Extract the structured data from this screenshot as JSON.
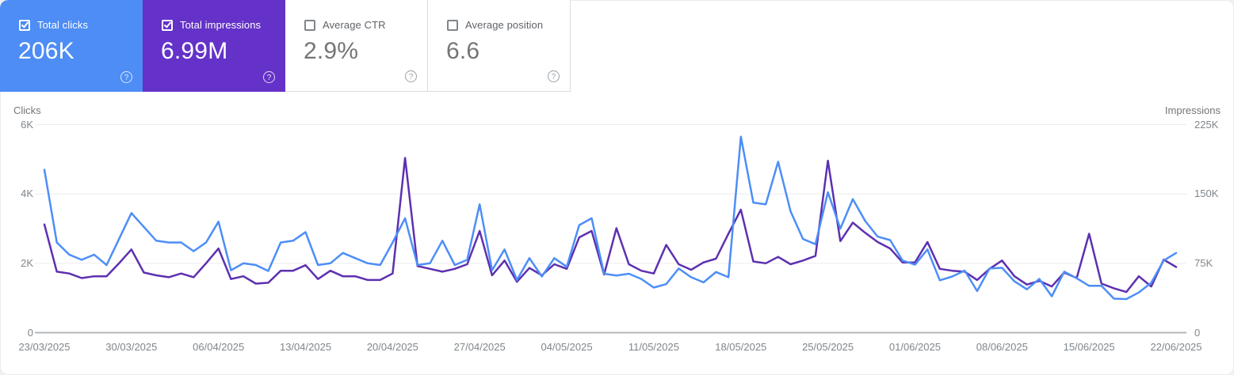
{
  "cards": [
    {
      "id": "total-clicks",
      "label": "Total clicks",
      "value": "206K",
      "checked": true,
      "bg": "#4d8df5"
    },
    {
      "id": "total-impressions",
      "label": "Total impressions",
      "value": "6.99M",
      "checked": true,
      "bg": "#6432c8"
    },
    {
      "id": "average-ctr",
      "label": "Average CTR",
      "value": "2.9%",
      "checked": false,
      "bg": "#ffffff"
    },
    {
      "id": "average-position",
      "label": "Average position",
      "value": "6.6",
      "checked": false,
      "bg": "#ffffff"
    }
  ],
  "chart": {
    "left_axis": {
      "title": "Clicks",
      "ticks": [
        "6K",
        "4K",
        "2K",
        "0"
      ]
    },
    "right_axis": {
      "title": "Impressions",
      "ticks": [
        "225K",
        "150K",
        "75K",
        "0"
      ]
    },
    "x_tick_labels": [
      "23/03/2025",
      "30/03/2025",
      "06/04/2025",
      "13/04/2025",
      "20/04/2025",
      "27/04/2025",
      "04/05/2025",
      "11/05/2025",
      "18/05/2025",
      "25/05/2025",
      "01/06/2025",
      "08/06/2025",
      "15/06/2025",
      "22/06/2025"
    ],
    "grid_color": "#ececec",
    "baseline_color": "#b3b7bb",
    "tick_color": "#80868b"
  },
  "chart_data": {
    "type": "line",
    "x": [
      "23/03/2025",
      "24/03/2025",
      "25/03/2025",
      "26/03/2025",
      "27/03/2025",
      "28/03/2025",
      "29/03/2025",
      "30/03/2025",
      "31/03/2025",
      "01/04/2025",
      "02/04/2025",
      "03/04/2025",
      "04/04/2025",
      "05/04/2025",
      "06/04/2025",
      "07/04/2025",
      "08/04/2025",
      "09/04/2025",
      "10/04/2025",
      "11/04/2025",
      "12/04/2025",
      "13/04/2025",
      "14/04/2025",
      "15/04/2025",
      "16/04/2025",
      "17/04/2025",
      "18/04/2025",
      "19/04/2025",
      "20/04/2025",
      "21/04/2025",
      "22/04/2025",
      "23/04/2025",
      "24/04/2025",
      "25/04/2025",
      "26/04/2025",
      "27/04/2025",
      "28/04/2025",
      "29/04/2025",
      "30/04/2025",
      "01/05/2025",
      "02/05/2025",
      "03/05/2025",
      "04/05/2025",
      "05/05/2025",
      "06/05/2025",
      "07/05/2025",
      "08/05/2025",
      "09/05/2025",
      "10/05/2025",
      "11/05/2025",
      "12/05/2025",
      "13/05/2025",
      "14/05/2025",
      "15/05/2025",
      "16/05/2025",
      "17/05/2025",
      "18/05/2025",
      "19/05/2025",
      "20/05/2025",
      "21/05/2025",
      "22/05/2025",
      "23/05/2025",
      "24/05/2025",
      "25/05/2025",
      "26/05/2025",
      "27/05/2025",
      "28/05/2025",
      "29/05/2025",
      "30/05/2025",
      "31/05/2025",
      "01/06/2025",
      "02/06/2025",
      "03/06/2025",
      "04/06/2025",
      "05/06/2025",
      "06/06/2025",
      "07/06/2025",
      "08/06/2025",
      "09/06/2025",
      "10/06/2025",
      "11/06/2025",
      "12/06/2025",
      "13/06/2025",
      "14/06/2025",
      "15/06/2025",
      "16/06/2025",
      "17/06/2025",
      "18/06/2025",
      "19/06/2025",
      "20/06/2025",
      "21/06/2025",
      "22/06/2025"
    ],
    "series": [
      {
        "name": "Clicks",
        "axis": "left",
        "color": "#4d8ef7",
        "values": [
          4700,
          2600,
          2250,
          2100,
          2250,
          1950,
          2700,
          3450,
          3050,
          2650,
          2600,
          2600,
          2350,
          2600,
          3200,
          1800,
          2000,
          1950,
          1780,
          2600,
          2650,
          2900,
          1950,
          2000,
          2300,
          2150,
          2000,
          1950,
          2600,
          3300,
          1950,
          2000,
          2650,
          1950,
          2100,
          3700,
          1800,
          2400,
          1520,
          2150,
          1620,
          2150,
          1900,
          3100,
          3300,
          1700,
          1650,
          1700,
          1550,
          1300,
          1400,
          1850,
          1600,
          1450,
          1750,
          1600,
          5650,
          3750,
          3700,
          4930,
          3500,
          2700,
          2550,
          4050,
          3000,
          3850,
          3220,
          2770,
          2670,
          2080,
          1960,
          2400,
          1510,
          1620,
          1790,
          1200,
          1850,
          1870,
          1480,
          1250,
          1550,
          1050,
          1760,
          1570,
          1350,
          1350,
          980,
          970,
          1160,
          1440,
          2080,
          2300
        ]
      },
      {
        "name": "Impressions",
        "axis": "right",
        "color": "#5d30b0",
        "values": [
          117000,
          66000,
          64000,
          59000,
          61000,
          61000,
          75000,
          90000,
          65000,
          62000,
          60000,
          64000,
          60000,
          75000,
          91000,
          58000,
          61000,
          53000,
          54000,
          67000,
          67000,
          73000,
          58000,
          67000,
          61000,
          61000,
          57000,
          57000,
          64000,
          189000,
          72000,
          69000,
          66000,
          69000,
          74000,
          110000,
          62000,
          78000,
          55000,
          70000,
          62000,
          74000,
          69000,
          103000,
          110000,
          63000,
          113000,
          74000,
          67000,
          64000,
          95000,
          74000,
          68000,
          76000,
          80000,
          107000,
          133000,
          77000,
          75000,
          82000,
          74000,
          78000,
          83000,
          186000,
          99000,
          119000,
          108000,
          98000,
          91000,
          76000,
          76000,
          98000,
          69000,
          67000,
          66000,
          57000,
          69000,
          78000,
          61000,
          52000,
          56000,
          50000,
          65000,
          59000,
          107000,
          53000,
          48000,
          44000,
          61000,
          50000,
          79000,
          71000
        ]
      }
    ],
    "left_ylim": [
      0,
      6000
    ],
    "right_ylim": [
      0,
      225000
    ],
    "grid": true,
    "legend_position": "none",
    "x_label_every": 7
  }
}
